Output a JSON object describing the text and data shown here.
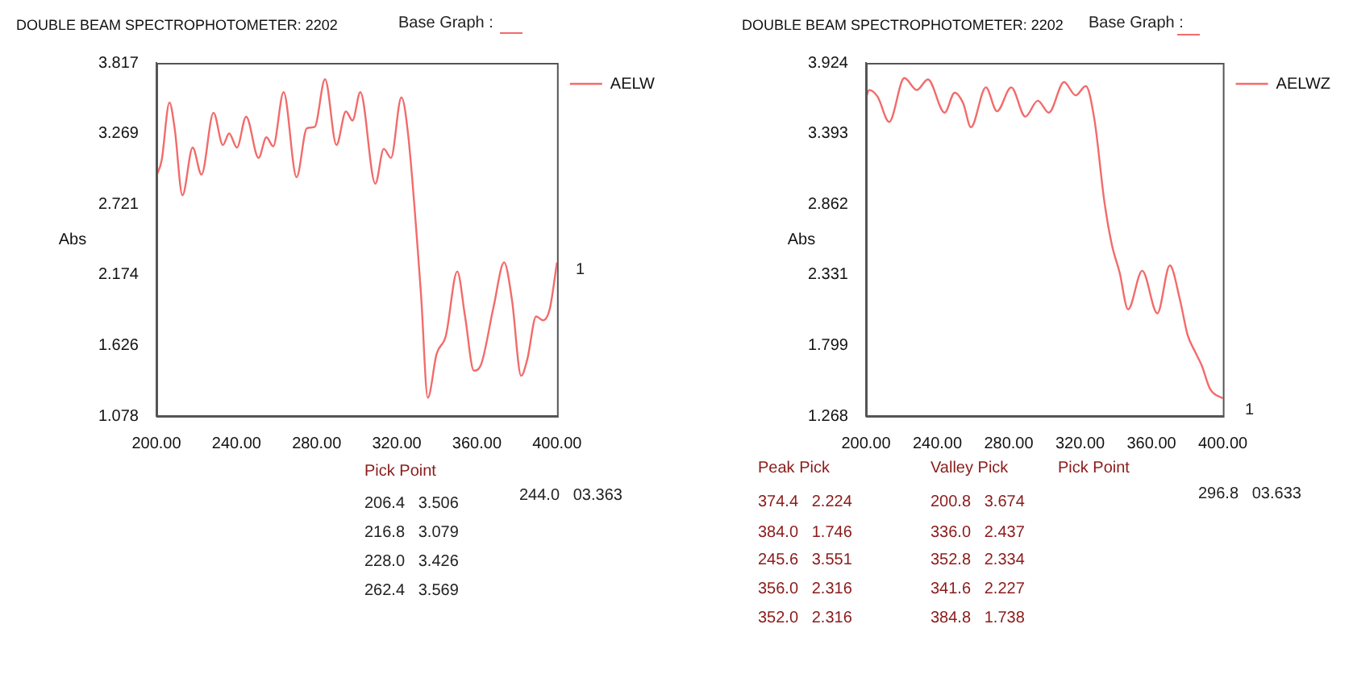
{
  "chart_data": [
    {
      "type": "line",
      "title": "DOUBLE BEAM SPECTROPHOTOMETER: 2202",
      "ylabel": "Abs",
      "legend": "top right",
      "xlim": [
        200,
        400
      ],
      "ylim": [
        1.078,
        3.817
      ],
      "xticks": [
        {
          "value": 200,
          "label": "200.00"
        },
        {
          "value": 240,
          "label": "240.00"
        },
        {
          "value": 280,
          "label": "280.00"
        },
        {
          "value": 320,
          "label": "320.00"
        },
        {
          "value": 360,
          "label": "360.00"
        },
        {
          "value": 400,
          "label": "400.00"
        }
      ],
      "yticks": [
        1.078,
        1.626,
        2.174,
        2.721,
        3.269,
        3.817
      ],
      "x": [
        200,
        202.6,
        206.5,
        209.1,
        213,
        218.1,
        222.5,
        228.5,
        233.2,
        236.3,
        240.2,
        244.8,
        251,
        254.9,
        258.3,
        263.5,
        270,
        275.1,
        279,
        284.2,
        289.9,
        294.6,
        297.9,
        301.8,
        309.3,
        313.5,
        317.1,
        322.3,
        325.6,
        332.1,
        335.5,
        339.9,
        344.5,
        350.2,
        354.1,
        358.5,
        361.9,
        368.4,
        373.6,
        377.5,
        382.1,
        385.2,
        389.6,
        393,
        396.4,
        400
      ],
      "series": [
        {
          "name": "AELW",
          "color": "#f26b6b",
          "values": [
            2.94,
            3.06,
            3.51,
            3.31,
            2.79,
            3.16,
            2.95,
            3.43,
            3.18,
            3.27,
            3.16,
            3.4,
            3.08,
            3.24,
            3.17,
            3.59,
            2.93,
            3.31,
            3.32,
            3.69,
            3.18,
            3.44,
            3.37,
            3.59,
            2.88,
            3.15,
            3.08,
            3.55,
            3.27,
            2.02,
            1.22,
            1.56,
            1.7,
            2.2,
            1.85,
            1.43,
            1.47,
            1.93,
            2.27,
            1.98,
            1.39,
            1.52,
            1.85,
            1.82,
            1.91,
            2.27
          ]
        }
      ],
      "annotations": [
        "Base Graph :",
        "Pick Point",
        "206.4   3.506",
        "216.8   3.079",
        "228.0   3.426",
        "262.4   3.569",
        "244.0   03.363",
        "1"
      ]
    },
    {
      "type": "line",
      "title": "DOUBLE BEAM SPECTROPHOTOMETER: 2202",
      "ylabel": "Abs",
      "legend": "top right",
      "xlim": [
        200,
        400
      ],
      "ylim": [
        1.268,
        3.924
      ],
      "xticks": [
        {
          "value": 200,
          "label": "200.00"
        },
        {
          "value": 240,
          "label": "240.00"
        },
        {
          "value": 280,
          "label": "280.00"
        },
        {
          "value": 320,
          "label": "320.00"
        },
        {
          "value": 360,
          "label": "360.00"
        },
        {
          "value": 400,
          "label": "400.00"
        }
      ],
      "yticks": [
        1.268,
        1.799,
        2.331,
        2.862,
        3.393,
        3.924
      ],
      "x": [
        200,
        201.7,
        206.5,
        213,
        221.5,
        228.5,
        234.7,
        244.1,
        249.7,
        254.5,
        258.8,
        267.2,
        273.4,
        281.4,
        289.3,
        296.3,
        302.5,
        311,
        317.5,
        323.2,
        328,
        333.6,
        337.9,
        342.1,
        346.9,
        354.8,
        363.3,
        370.3,
        376,
        380.2,
        384.5,
        388.1,
        392.9,
        400
      ],
      "series": [
        {
          "name": "AELWZ",
          "color": "#f26b6b",
          "values": [
            3.66,
            3.72,
            3.67,
            3.48,
            3.81,
            3.72,
            3.8,
            3.55,
            3.7,
            3.62,
            3.44,
            3.74,
            3.56,
            3.74,
            3.52,
            3.64,
            3.55,
            3.78,
            3.68,
            3.75,
            3.5,
            2.88,
            2.55,
            2.35,
            2.07,
            2.36,
            2.04,
            2.4,
            2.14,
            1.88,
            1.75,
            1.65,
            1.47,
            1.4
          ]
        }
      ],
      "annotations": [
        "Base Graph :",
        "Peak Pick",
        "Valley Pick",
        "Pick Point",
        "374.4   2.224",
        "384.0   1.746",
        "245.6   3.551",
        "356.0   2.316",
        "352.0   2.316",
        "200.8   3.674",
        "336.0   2.437",
        "352.8   2.334",
        "341.6   2.227",
        "384.8   1.738",
        "296.8   03.633",
        "1"
      ]
    }
  ]
}
